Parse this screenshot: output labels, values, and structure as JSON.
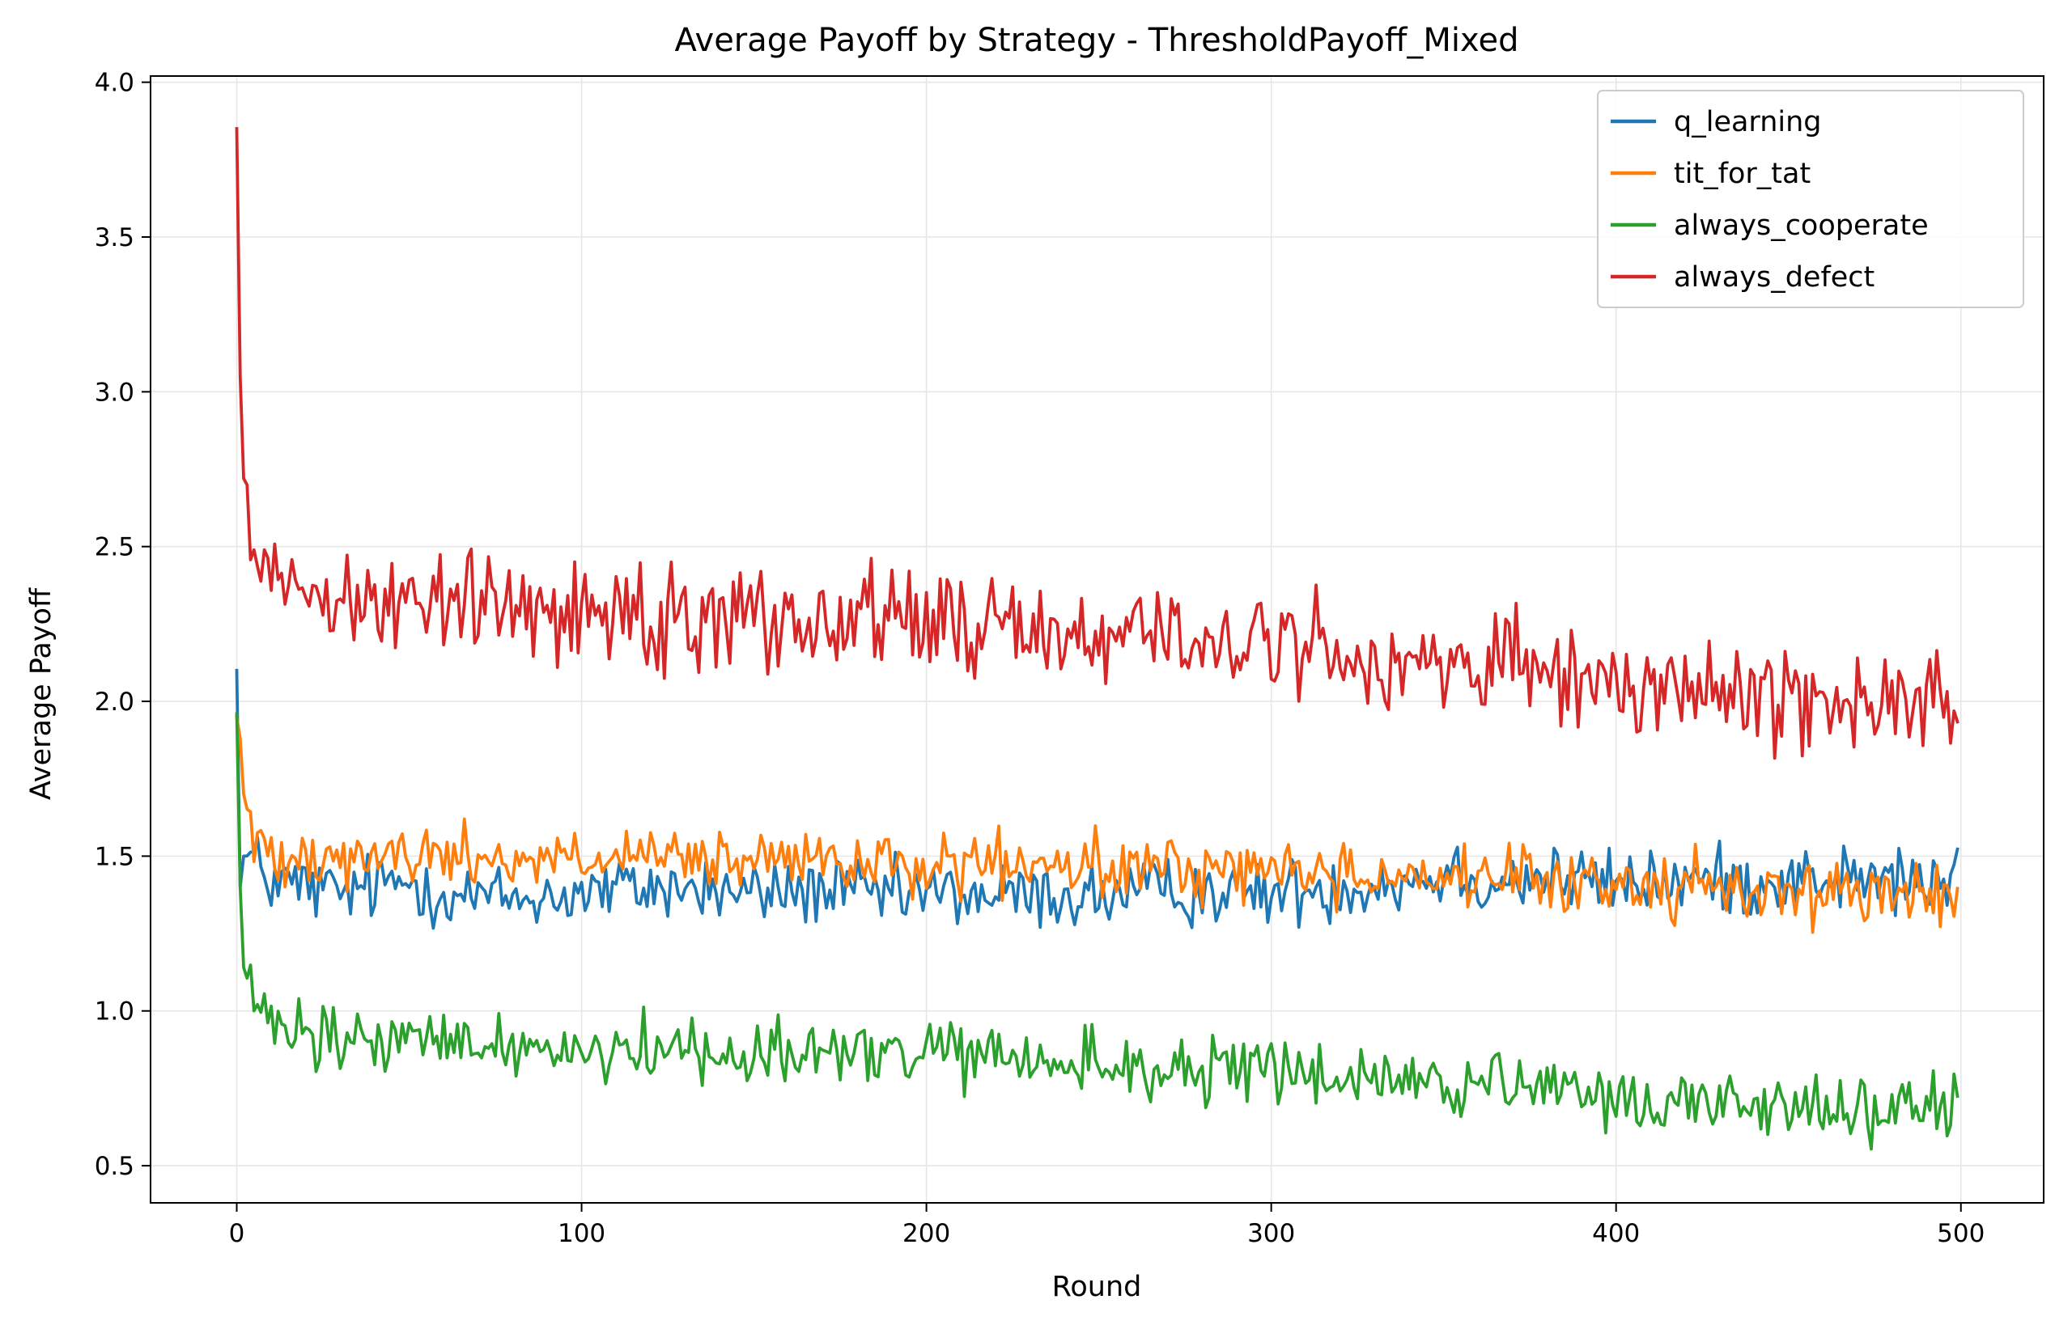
{
  "chart_data": {
    "type": "line",
    "title": "Average Payoff by Strategy - ThresholdPayoff_Mixed",
    "xlabel": "Round",
    "ylabel": "Average Payoff",
    "xlim": [
      -25,
      524
    ],
    "ylim": [
      0.38,
      4.02
    ],
    "xticks": [
      0,
      100,
      200,
      300,
      400,
      500
    ],
    "yticks": [
      0.5,
      1.0,
      1.5,
      2.0,
      2.5,
      3.0,
      3.5,
      4.0
    ],
    "xtick_labels": [
      "0",
      "100",
      "200",
      "300",
      "400",
      "500"
    ],
    "ytick_labels": [
      "0.5",
      "1.0",
      "1.5",
      "2.0",
      "2.5",
      "3.0",
      "3.5",
      "4.0"
    ],
    "grid": true,
    "legend_position": "top-right",
    "x_range": [
      0,
      499
    ],
    "series": [
      {
        "name": "q_learning",
        "color": "#1f77b4",
        "anchor_x": [
          0,
          1,
          2,
          5,
          10,
          20,
          30,
          50,
          60,
          80,
          100,
          120,
          150,
          170,
          190,
          200,
          220,
          250,
          280,
          300,
          320,
          340,
          356,
          360,
          380,
          400,
          420,
          440,
          460,
          480,
          499
        ],
        "anchor_y": [
          2.1,
          1.4,
          1.5,
          1.48,
          1.42,
          1.4,
          1.38,
          1.42,
          1.38,
          1.36,
          1.38,
          1.4,
          1.38,
          1.39,
          1.37,
          1.38,
          1.37,
          1.37,
          1.39,
          1.38,
          1.4,
          1.42,
          1.45,
          1.42,
          1.43,
          1.41,
          1.42,
          1.42,
          1.43,
          1.42,
          1.41
        ],
        "noise": 0.055
      },
      {
        "name": "tit_for_tat",
        "color": "#ff7f0e",
        "anchor_x": [
          0,
          1,
          2,
          5,
          10,
          20,
          40,
          60,
          100,
          150,
          200,
          250,
          300,
          330,
          350,
          380,
          400,
          420,
          450,
          480,
          499
        ],
        "anchor_y": [
          1.95,
          1.88,
          1.7,
          1.53,
          1.52,
          1.52,
          1.5,
          1.5,
          1.49,
          1.48,
          1.47,
          1.46,
          1.46,
          1.44,
          1.44,
          1.41,
          1.41,
          1.4,
          1.39,
          1.38,
          1.37
        ],
        "noise": 0.05
      },
      {
        "name": "always_cooperate",
        "color": "#2ca02c",
        "anchor_x": [
          0,
          1,
          2,
          4,
          8,
          20,
          50,
          100,
          150,
          200,
          250,
          300,
          350,
          400,
          450,
          499
        ],
        "anchor_y": [
          1.96,
          1.4,
          1.14,
          1.05,
          0.97,
          0.9,
          0.9,
          0.88,
          0.87,
          0.86,
          0.82,
          0.8,
          0.77,
          0.71,
          0.7,
          0.67
        ],
        "noise": 0.055
      },
      {
        "name": "always_defect",
        "color": "#d62728",
        "anchor_x": [
          0,
          1,
          2,
          3,
          5,
          10,
          20,
          50,
          100,
          150,
          200,
          250,
          300,
          350,
          400,
          450,
          499
        ],
        "anchor_y": [
          3.85,
          3.05,
          2.72,
          2.68,
          2.5,
          2.42,
          2.36,
          2.32,
          2.3,
          2.28,
          2.26,
          2.22,
          2.18,
          2.12,
          2.05,
          2.02,
          1.98
        ],
        "noise": 0.085
      }
    ]
  }
}
